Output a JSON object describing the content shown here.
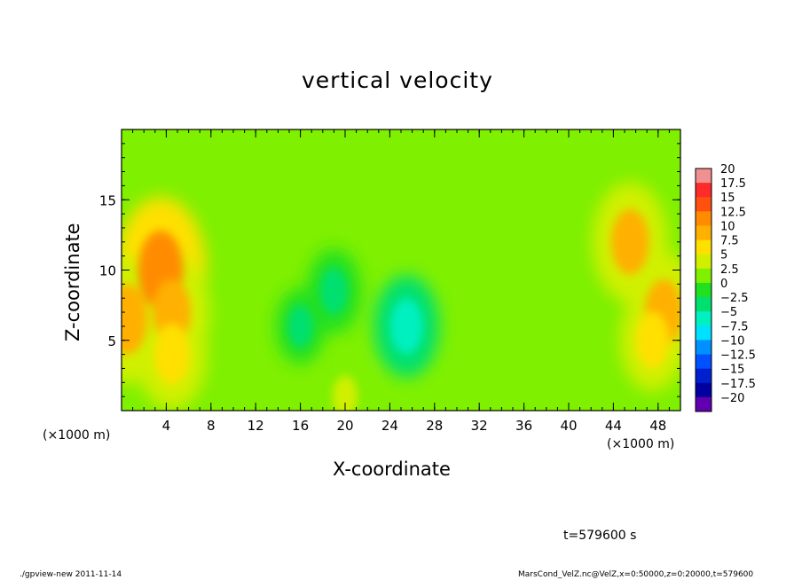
{
  "chart_data": {
    "type": "heatmap",
    "title": "vertical velocity",
    "xlabel": "X-coordinate",
    "ylabel": "Z-coordinate",
    "x_unit": "(×1000 m)",
    "xlim": [
      0,
      50
    ],
    "ylim": [
      0,
      20
    ],
    "x_ticks": [
      4,
      8,
      12,
      16,
      20,
      24,
      28,
      32,
      36,
      40,
      44,
      48
    ],
    "y_ticks": [
      5,
      10,
      15
    ],
    "colorbar": {
      "levels": [
        "20",
        "17.5",
        "15",
        "12.5",
        "10",
        "7.5",
        "5",
        "2.5",
        "0",
        "-2.5",
        "-5",
        "-7.5",
        "-10",
        "-12.5",
        "-15",
        "-17.5",
        "-20"
      ],
      "colors": [
        "#f09090",
        "#ff2a2a",
        "#ff5010",
        "#ff8c00",
        "#ffb000",
        "#ffe000",
        "#d0f000",
        "#7ef000",
        "#20e020",
        "#00e070",
        "#00f0c0",
        "#00e0ff",
        "#0090ff",
        "#0050ff",
        "#0020d0",
        "#0000a0",
        "#6000b0"
      ]
    },
    "features": [
      {
        "x": 3.5,
        "z": 10.0,
        "value": 11
      },
      {
        "x": 0.5,
        "z": 6.5,
        "value": 9
      },
      {
        "x": 4.5,
        "z": 7.0,
        "value": 8
      },
      {
        "x": 4.5,
        "z": 4.0,
        "value": 7
      },
      {
        "x": 45.5,
        "z": 12.0,
        "value": 8
      },
      {
        "x": 48.5,
        "z": 7.0,
        "value": 8
      },
      {
        "x": 47.5,
        "z": 5.0,
        "value": 6
      },
      {
        "x": 25.5,
        "z": 6.0,
        "value": -6
      },
      {
        "x": 19.0,
        "z": 8.5,
        "value": -4
      },
      {
        "x": 16.0,
        "z": 6.0,
        "value": -3
      },
      {
        "x": 20.0,
        "z": 1.0,
        "value": 3
      }
    ]
  },
  "annotations": {
    "time": "t=579600 s",
    "footer_left": "./gpview-new  2011-11-14",
    "footer_right": "MarsCond_VelZ.nc@VelZ,x=0:50000,z=0:20000,t=579600"
  }
}
